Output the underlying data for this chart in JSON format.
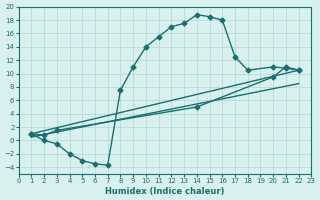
{
  "xlabel": "Humidex (Indice chaleur)",
  "background_color": "#d8f0ee",
  "line_color": "#1a7070",
  "grid_color": "#b0d8d4",
  "xlim": [
    0,
    23
  ],
  "ylim": [
    -5,
    20
  ],
  "xticks": [
    0,
    1,
    2,
    3,
    4,
    5,
    6,
    7,
    8,
    9,
    10,
    11,
    12,
    13,
    14,
    15,
    16,
    17,
    18,
    19,
    20,
    21,
    22,
    23
  ],
  "yticks": [
    -4,
    -2,
    0,
    2,
    4,
    6,
    8,
    10,
    12,
    14,
    16,
    18,
    20
  ],
  "line1_x": [
    1,
    2,
    3,
    4,
    5,
    6,
    7,
    8,
    9,
    10,
    11,
    12,
    13,
    14,
    15,
    16,
    17,
    18,
    20,
    21,
    22
  ],
  "line1_y": [
    1,
    0,
    -0.5,
    -2,
    -3,
    -3.5,
    -3.7,
    7.5,
    11,
    14,
    15.5,
    17,
    17.5,
    18.8,
    18.5,
    18,
    12.5,
    10.5,
    11,
    10.8,
    10.5
  ],
  "line2_x": [
    1,
    2,
    3,
    14,
    20,
    21,
    22
  ],
  "line2_y": [
    1,
    0.8,
    1.5,
    5.0,
    9.5,
    11,
    10.5
  ],
  "line3_x": [
    1,
    22
  ],
  "line3_y": [
    0.5,
    8.5
  ],
  "line4_x": [
    1,
    22
  ],
  "line4_y": [
    1.0,
    10.5
  ],
  "marker": "D",
  "marker_size": 2.5,
  "linewidth": 1.0
}
